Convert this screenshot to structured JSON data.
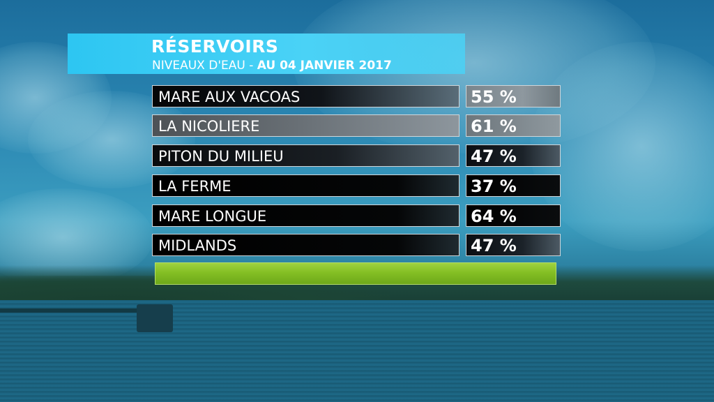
{
  "title": "RÉSERVOIRS",
  "subtitle_prefix": "NIVEAUX D'EAU - ",
  "subtitle_date": "AU 04 JANVIER 2017",
  "reservoirs": [
    {
      "name": "MARE AUX VACOAS",
      "level": "55 %"
    },
    {
      "name": "LA NICOLIERE",
      "level": "61 %"
    },
    {
      "name": "PITON DU MILIEU",
      "level": "47 %"
    },
    {
      "name": "LA FERME",
      "level": "37 %"
    },
    {
      "name": "MARE LONGUE",
      "level": "64 %"
    },
    {
      "name": "MIDLANDS",
      "level": "47 %"
    }
  ],
  "colors": {
    "title_bar": "#2dc6f2",
    "footer_bar": "#84bf24",
    "text": "#ffffff"
  }
}
